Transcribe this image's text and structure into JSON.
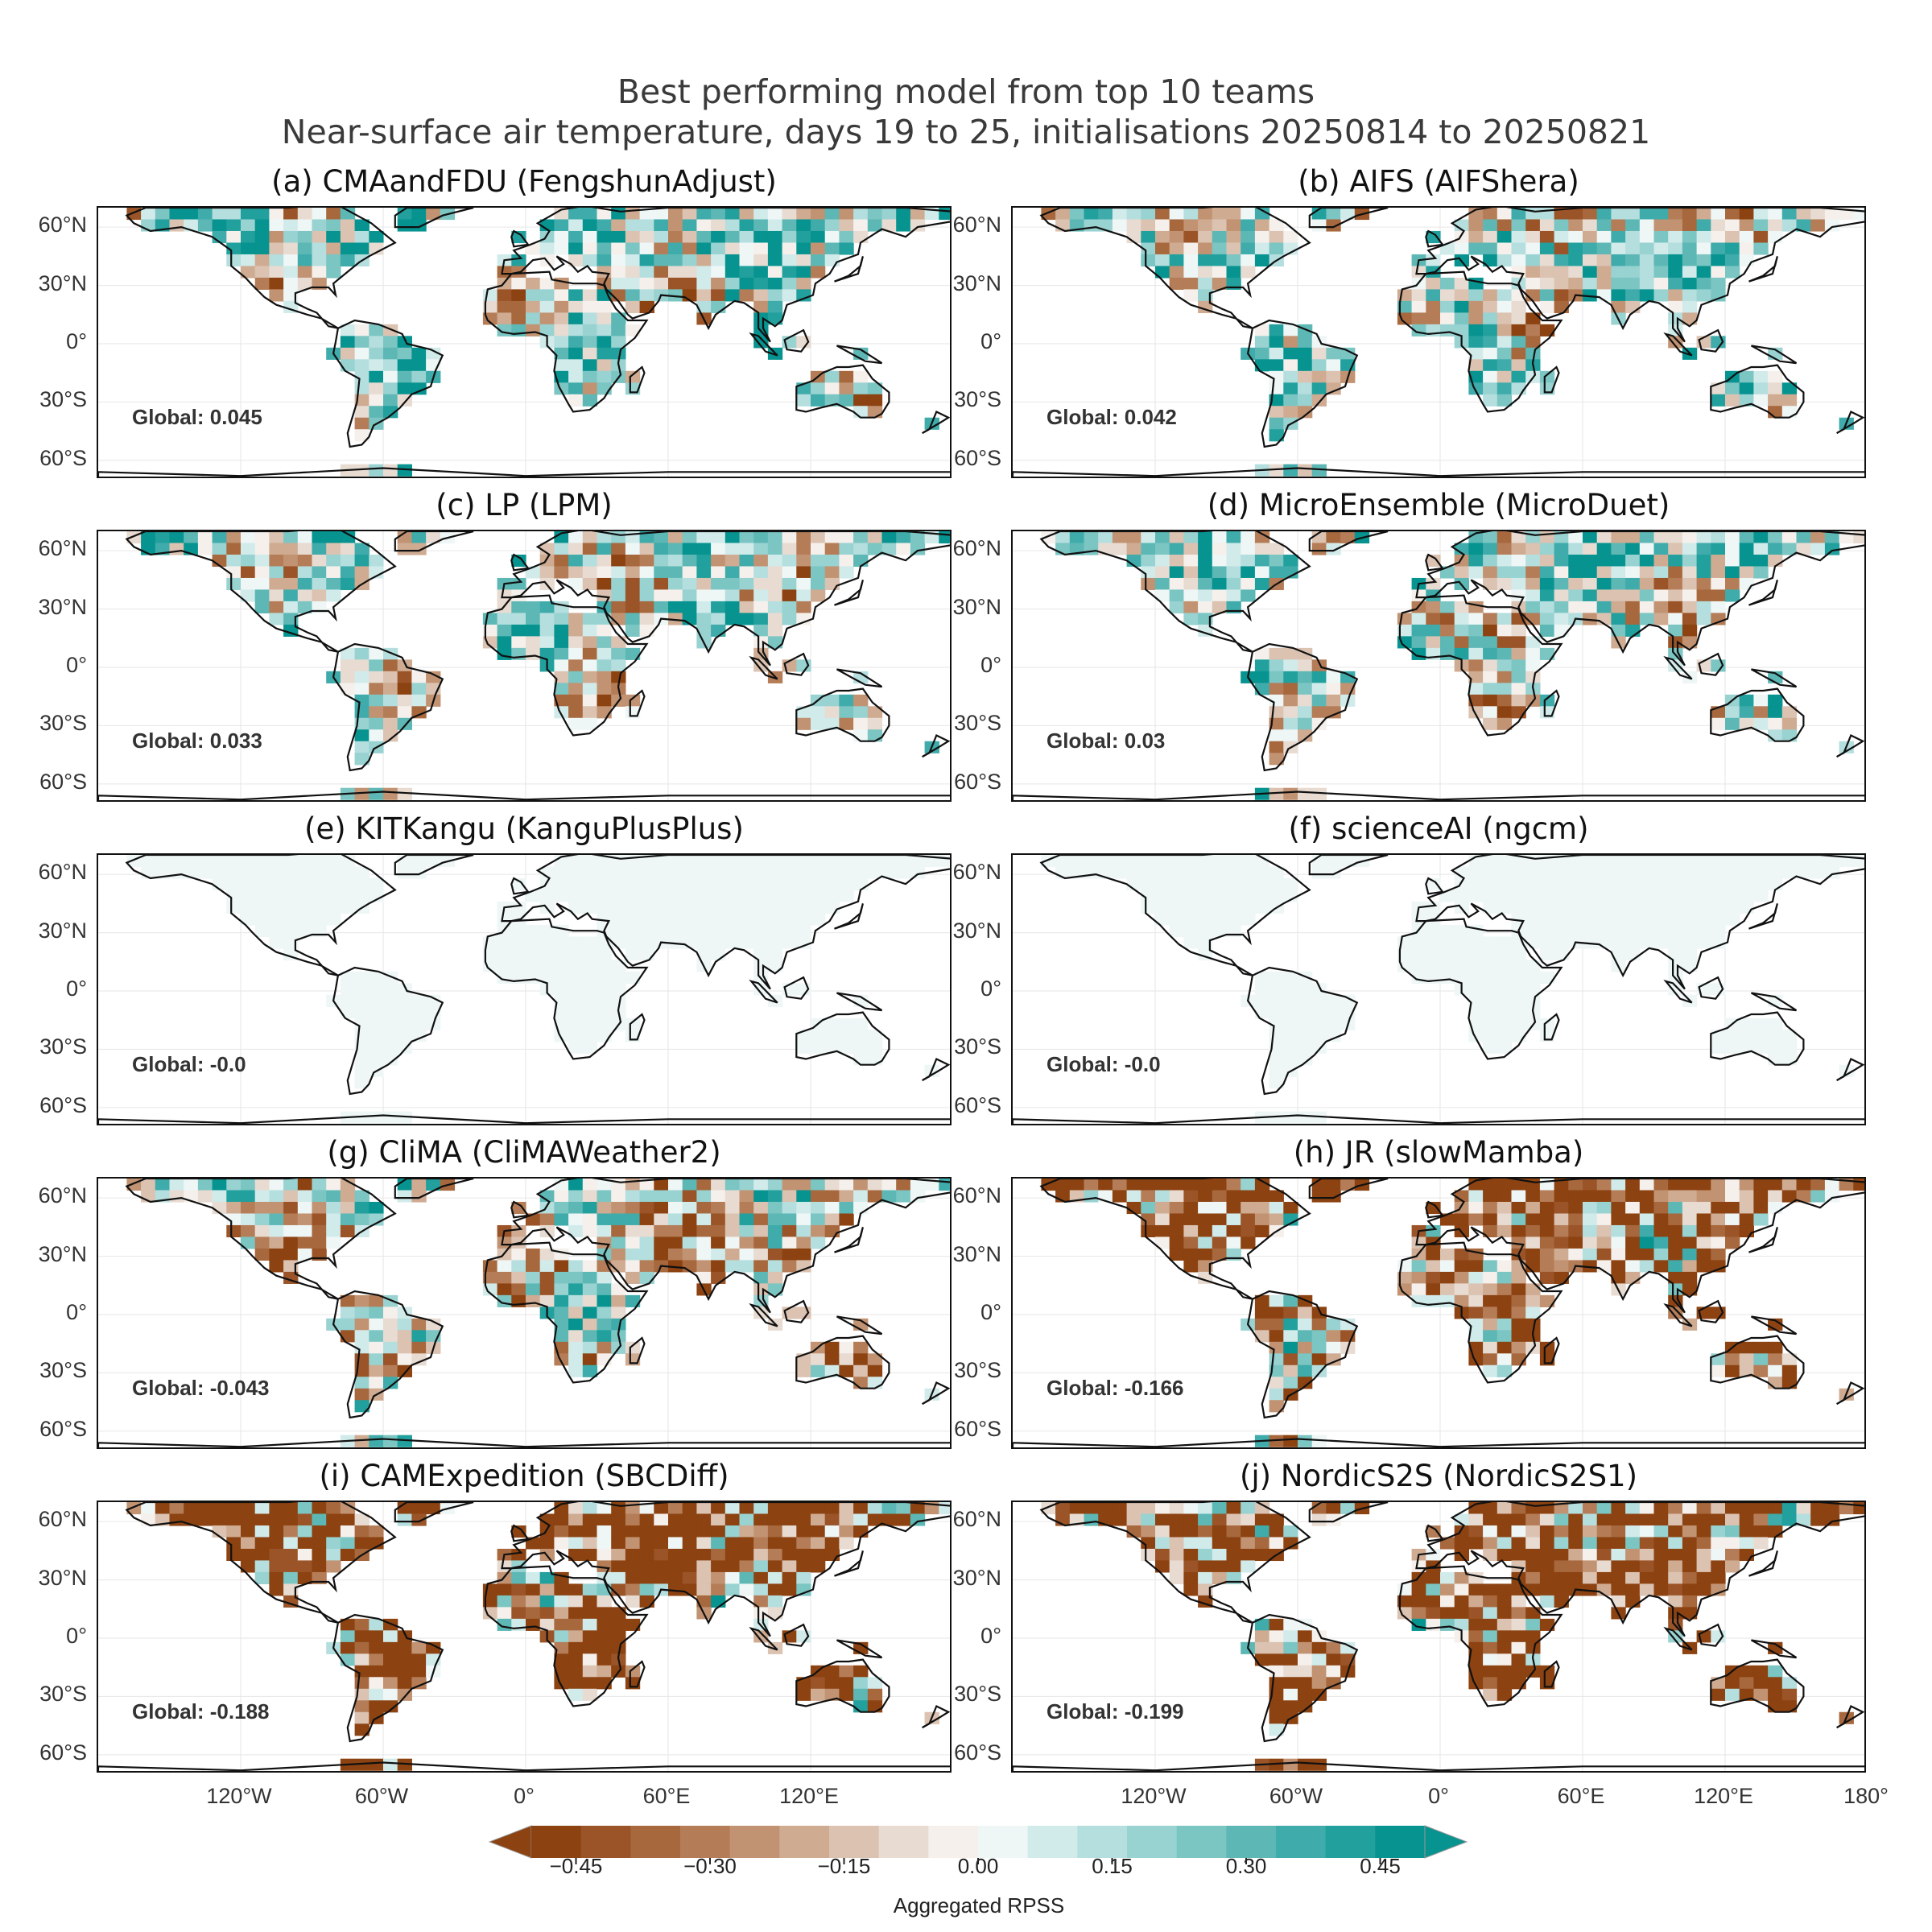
{
  "title_line1": "Best performing model from top 10 teams",
  "title_line2": "Near-surface air temperature, days 19 to 25, initialisations 20250814 to 20250821",
  "panels": [
    {
      "title": "(a) CMAandFDU (FengshunAdjust)",
      "global": "Global: 0.045",
      "score": 0.045
    },
    {
      "title": "(b) AIFS (AIFShera)",
      "global": "Global: 0.042",
      "score": 0.042
    },
    {
      "title": "(c) LP (LPM)",
      "global": "Global: 0.033",
      "score": 0.033
    },
    {
      "title": "(d) MicroEnsemble (MicroDuet)",
      "global": "Global: 0.03",
      "score": 0.03
    },
    {
      "title": "(e) KITKangu (KanguPlusPlus)",
      "global": "Global: -0.0",
      "score": 0.0
    },
    {
      "title": "(f) scienceAI (ngcm)",
      "global": "Global: -0.0",
      "score": 0.0
    },
    {
      "title": "(g) CliMA (CliMAWeather2)",
      "global": "Global: -0.043",
      "score": -0.043
    },
    {
      "title": "(h) JR (slowMamba)",
      "global": "Global: -0.166",
      "score": -0.166
    },
    {
      "title": "(i) CAMExpedition (SBCDiff)",
      "global": "Global: -0.188",
      "score": -0.188
    },
    {
      "title": "(j) NordicS2S (NordicS2S1)",
      "global": "Global: -0.199",
      "score": -0.199
    }
  ],
  "lat_labels": [
    "60°N",
    "30°N",
    "0°",
    "30°S",
    "60°S"
  ],
  "lon_labels_left": [
    "120°W",
    "60°W",
    "0°",
    "60°E",
    "120°E"
  ],
  "lon_labels_right": [
    "120°W",
    "60°W",
    "0°",
    "60°E",
    "120°E",
    "180°"
  ],
  "colorbar": {
    "label": "Aggregated RPSS",
    "ticks": [
      "−0.45",
      "−0.30",
      "−0.15",
      "0.00",
      "0.15",
      "0.30",
      "0.45"
    ],
    "tick_values": [
      -0.45,
      -0.3,
      -0.15,
      0.0,
      0.15,
      0.3,
      0.45
    ],
    "min": -0.5,
    "max": 0.5,
    "colors": [
      "#8c4211",
      "#9a5428",
      "#a7683e",
      "#b57d57",
      "#c29372",
      "#cfab92",
      "#dbc2b1",
      "#e8dbd1",
      "#f5f0eb",
      "#eef6f6",
      "#d1ebeb",
      "#b5dede",
      "#98d2d1",
      "#7bc5c3",
      "#5db8b5",
      "#3fabaa",
      "#22a09d",
      "#07938f"
    ],
    "extend_low": "#8c4211",
    "extend_high": "#07938f"
  }
}
